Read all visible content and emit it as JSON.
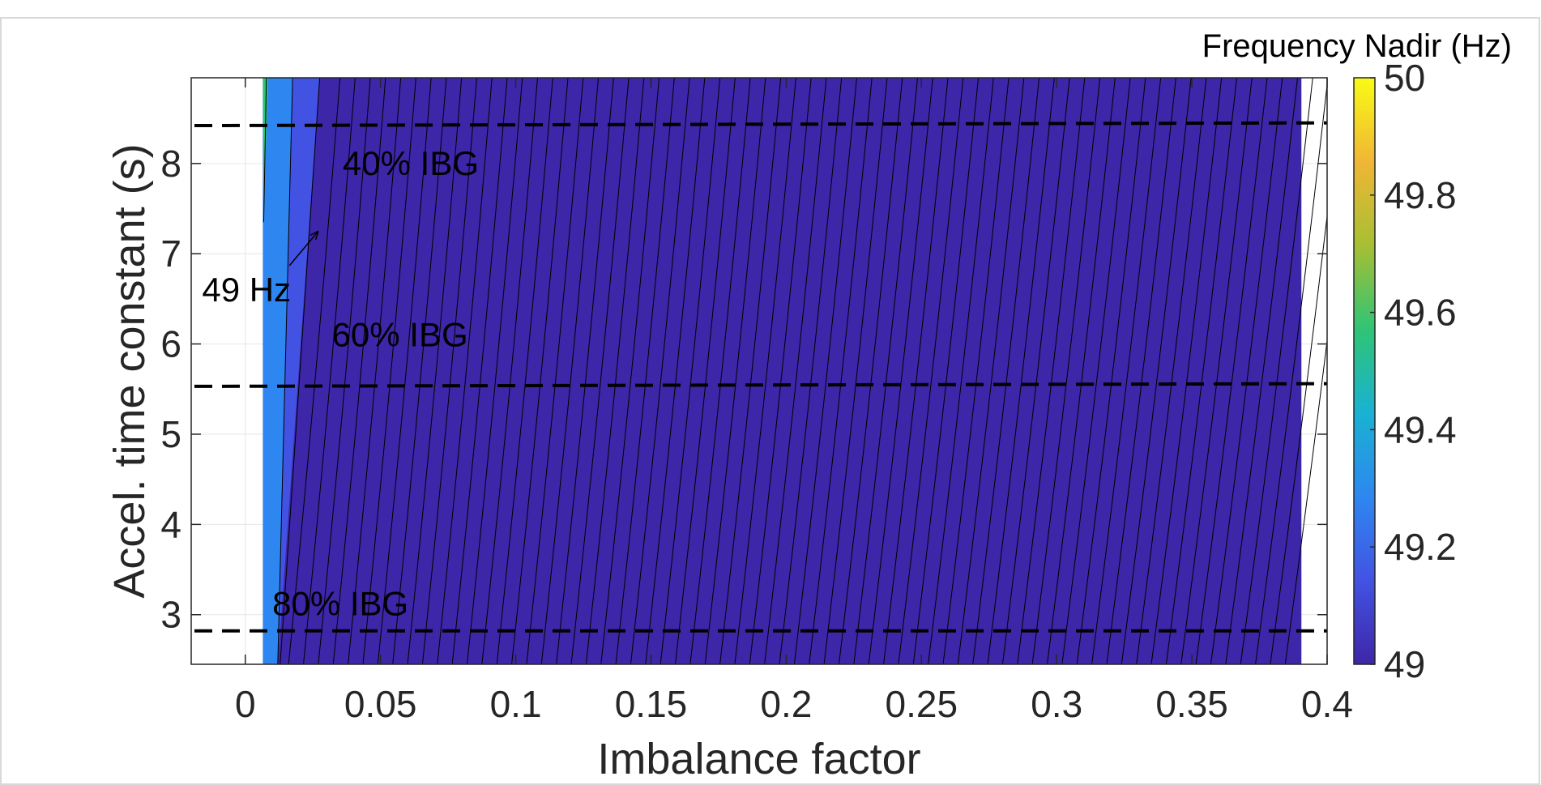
{
  "chart_data": {
    "type": "heatmap",
    "subtype": "filled-contour",
    "xlabel": "Imbalance factor",
    "ylabel": "Accel. time constant (s)",
    "xlim": [
      -0.02,
      0.4
    ],
    "ylim": [
      2.45,
      8.95
    ],
    "x_ticks": [
      "0",
      "0.05",
      "0.1",
      "0.15",
      "0.2",
      "0.25",
      "0.3",
      "0.35",
      "0.4"
    ],
    "x_tick_values": [
      0,
      0.05,
      0.1,
      0.15,
      0.2,
      0.25,
      0.3,
      0.35,
      0.4
    ],
    "y_ticks": [
      "3",
      "4",
      "5",
      "6",
      "7",
      "8"
    ],
    "y_tick_values": [
      3,
      4,
      5,
      6,
      7,
      8
    ],
    "grid": true,
    "data_region": {
      "x_min": 0.0065,
      "x_max": 0.3905
    },
    "colorbar": {
      "title": "Frequency Nadir (Hz)",
      "ticks": [
        "49",
        "49.2",
        "49.4",
        "49.6",
        "49.8",
        "50"
      ],
      "tick_values": [
        49,
        49.2,
        49.4,
        49.6,
        49.8,
        50
      ],
      "range": [
        49,
        50
      ],
      "colormap": "parula",
      "colors": [
        "#3e26a8",
        "#4253e3",
        "#2e87f0",
        "#19b2d2",
        "#2fc475",
        "#a7bf33",
        "#f0b635",
        "#f9fb15"
      ]
    },
    "bands": [
      {
        "level_max": 49.6,
        "color": "#2fc475",
        "x_start_top": 0.0065,
        "x_end_top": 0.0075,
        "y_min": 7.35
      },
      {
        "level_max": 49.2,
        "color": "#2e87f0",
        "x_start": 0.0065,
        "x_end_top": 0.0175,
        "x_end_bottom": 0.012
      },
      {
        "level_max": 49.1,
        "color": "#4253e3",
        "x_end_top": 0.0275,
        "x_end_bottom": 0.012
      },
      {
        "level_max": 49.0,
        "color": "#3e26a8",
        "x_end": 0.3905
      }
    ],
    "contour_lines": {
      "color": "#000000",
      "count": 68,
      "x_step": 0.0055
    },
    "reference_lines": [
      {
        "label": "40% IBG",
        "y_left": 8.42,
        "y_right": 8.45
      },
      {
        "label": "60% IBG",
        "y_left": 5.53,
        "y_right": 5.56
      },
      {
        "label": "80% IBG",
        "y_left": 2.82,
        "y_right": 2.82
      }
    ],
    "annotations": [
      {
        "text": "49 Hz",
        "x": -0.016,
        "y": 6.6,
        "arrow_to": [
          0.027,
          7.25
        ]
      },
      {
        "text": "40% IBG",
        "x": 0.036,
        "y": 8.0
      },
      {
        "text": "60% IBG",
        "x": 0.032,
        "y": 6.1
      },
      {
        "text": "80% IBG",
        "x": 0.01,
        "y": 3.12
      }
    ]
  }
}
